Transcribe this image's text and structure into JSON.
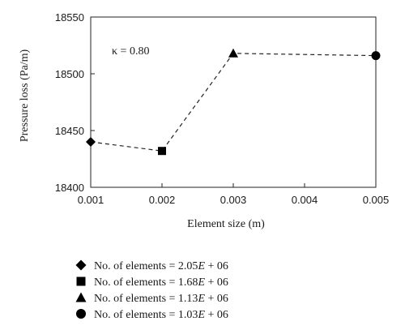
{
  "chart_data": {
    "type": "scatter",
    "title": "",
    "xlabel": "Element size (m)",
    "ylabel": "Pressure loss (Pa/m)",
    "xlim": [
      0.001,
      0.005
    ],
    "ylim": [
      18400,
      18550
    ],
    "x_ticks": [
      "0.001",
      "0.002",
      "0.003",
      "0.004",
      "0.005"
    ],
    "y_ticks": [
      "18400",
      "18450",
      "18500",
      "18550"
    ],
    "grid": false,
    "annotation": "κ = 0.80",
    "connector": "dashed",
    "series": [
      {
        "name": "No. of elements = 2.05E + 06",
        "marker": "diamond",
        "x": [
          0.001
        ],
        "y": [
          18440
        ]
      },
      {
        "name": "No. of elements = 1.68E + 06",
        "marker": "square",
        "x": [
          0.002
        ],
        "y": [
          18432
        ]
      },
      {
        "name": "No. of elements = 1.13E + 06",
        "marker": "triangle",
        "x": [
          0.003
        ],
        "y": [
          18518
        ]
      },
      {
        "name": "No. of elements = 1.03E + 06",
        "marker": "circle",
        "x": [
          0.005
        ],
        "y": [
          18516
        ]
      }
    ],
    "legend_position": "below",
    "color": "#000000"
  }
}
